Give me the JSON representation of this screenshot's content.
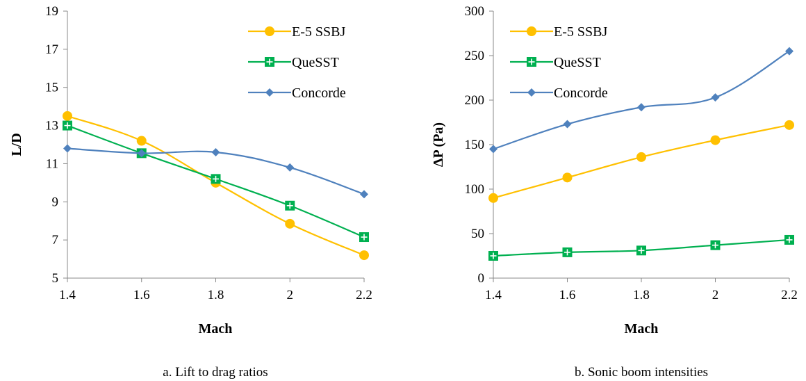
{
  "chart_data": [
    {
      "type": "line",
      "caption": "a. Lift to drag ratios",
      "xlabel": "Mach",
      "ylabel": "L/D",
      "x": [
        1.4,
        1.6,
        1.8,
        2,
        2.2
      ],
      "x_tick_labels": [
        "1.4",
        "1.6",
        "1.8",
        "2",
        "2.2"
      ],
      "ylim": [
        5,
        19
      ],
      "y_ticks": [
        5,
        7,
        9,
        11,
        13,
        15,
        17,
        19
      ],
      "legend_position": "top-right",
      "grid": false,
      "series": [
        {
          "name": "E-5 SSBJ",
          "color": "#FFC000",
          "marker": "circle",
          "values": [
            13.5,
            12.2,
            10.0,
            7.85,
            6.2
          ]
        },
        {
          "name": "QueSST",
          "color": "#00B050",
          "marker": "square-plus",
          "values": [
            13.0,
            11.55,
            10.2,
            8.8,
            7.15
          ]
        },
        {
          "name": "Concorde",
          "color": "#4F81BD",
          "marker": "diamond",
          "values": [
            11.8,
            11.55,
            11.6,
            10.8,
            9.4
          ]
        }
      ]
    },
    {
      "type": "line",
      "caption": "b. Sonic boom intensities",
      "xlabel": "Mach",
      "ylabel": "ΔP (Pa)",
      "x": [
        1.4,
        1.6,
        1.8,
        2,
        2.2
      ],
      "x_tick_labels": [
        "1.4",
        "1.6",
        "1.8",
        "2",
        "2.2"
      ],
      "ylim": [
        0,
        300
      ],
      "y_ticks": [
        0,
        50,
        100,
        150,
        200,
        250,
        300
      ],
      "legend_position": "top-left",
      "grid": false,
      "series": [
        {
          "name": "E-5 SSBJ",
          "color": "#FFC000",
          "marker": "circle",
          "values": [
            90,
            113,
            136,
            155,
            172
          ]
        },
        {
          "name": "QueSST",
          "color": "#00B050",
          "marker": "square-plus",
          "values": [
            25,
            29,
            31,
            37,
            43
          ]
        },
        {
          "name": "Concorde",
          "color": "#4F81BD",
          "marker": "diamond",
          "values": [
            145,
            173,
            192,
            203,
            255
          ]
        }
      ]
    }
  ]
}
